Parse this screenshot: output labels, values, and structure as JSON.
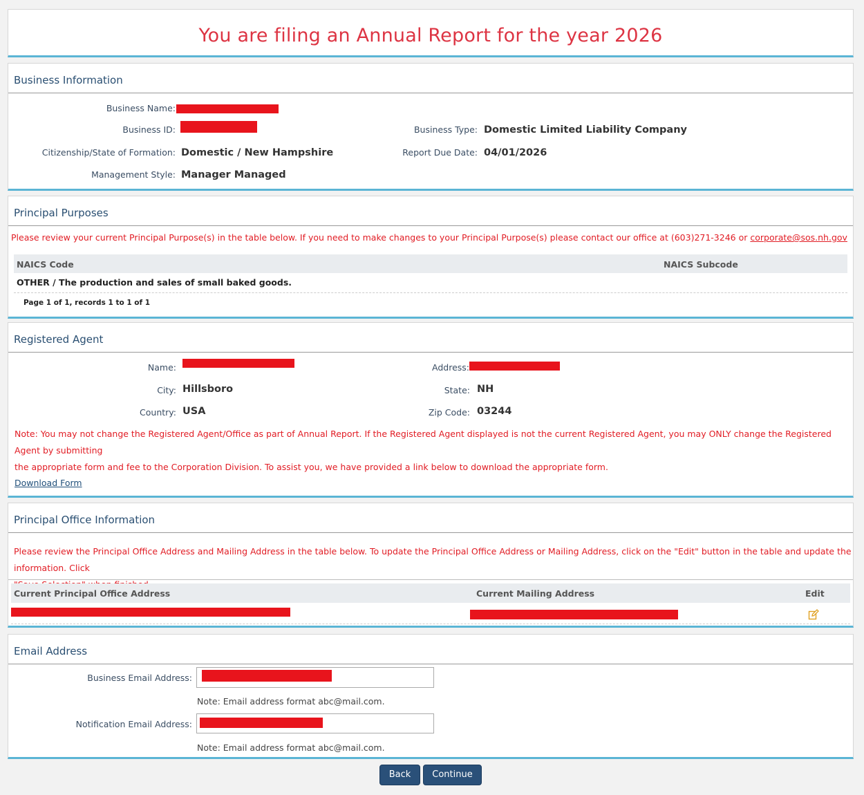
{
  "banner": {
    "title": "You are filing an Annual Report for the year 2026"
  },
  "business": {
    "heading": "Business Information",
    "name_label": "Business Name:",
    "id_label": "Business ID:",
    "citizenship_label": "Citizenship/State of Formation:",
    "citizenship_value": "Domestic / New Hampshire",
    "management_label": "Management Style:",
    "management_value": "Manager Managed",
    "type_label": "Business Type:",
    "type_value": "Domestic Limited Liability Company",
    "due_label": "Report Due Date:",
    "due_value": "04/01/2026"
  },
  "purposes": {
    "heading": "Principal Purposes",
    "note_text": "Please review your current Principal Purpose(s) in the table below. If you need to make changes to your Principal Purpose(s) please contact our office at (603)271-3246 or ",
    "note_email": "corporate@sos.nh.gov",
    "col_code": "NAICS Code",
    "col_subcode": "NAICS Subcode",
    "row_code": "OTHER / The production and sales of small baked goods.",
    "row_subcode": "",
    "paging": "Page 1 of 1, records 1 to 1 of 1"
  },
  "agent": {
    "heading": "Registered Agent",
    "name_label": "Name:",
    "city_label": "City:",
    "city_value": "Hillsboro",
    "country_label": "Country:",
    "country_value": "USA",
    "address_label": "Address:",
    "state_label": "State:",
    "state_value": "NH",
    "zip_label": "Zip Code:",
    "zip_value": "03244",
    "note_line1": "Note: You may not change the Registered Agent/Office as part of Annual Report. If the Registered Agent displayed is not the current Registered Agent, you may ONLY change the Registered Agent by submitting",
    "note_line2": "the appropriate form and fee to the Corporation Division. To assist you, we have provided a link below to download the appropriate form.",
    "download_link": "Download Form"
  },
  "office": {
    "heading": "Principal Office Information",
    "note_line1": "Please review the Principal Office Address and Mailing Address in the table below. To update the Principal Office Address or Mailing Address, click on the \"Edit\" button in the table and update the information. Click",
    "note_line2": "\"Save Selection\" when finished.",
    "col_principal": "Current Principal Office Address",
    "col_mailing": "Current Mailing Address",
    "col_edit": "Edit"
  },
  "email": {
    "heading": "Email Address",
    "business_label": "Business Email Address:",
    "notification_label": "Notification Email Address:",
    "format_note": "Note: Email address format abc@mail.com."
  },
  "buttons": {
    "back": "Back",
    "continue": "Continue"
  },
  "colors": {
    "accent_red": "#dd3443",
    "note_red": "#e11c24",
    "heading_blue": "#2a4f72",
    "button_blue": "#2a5079",
    "divider_blue": "#5bb5d5",
    "redaction": "#e8141c",
    "edit_icon": "#e0a020"
  },
  "icons": {
    "edit": "edit-icon"
  }
}
